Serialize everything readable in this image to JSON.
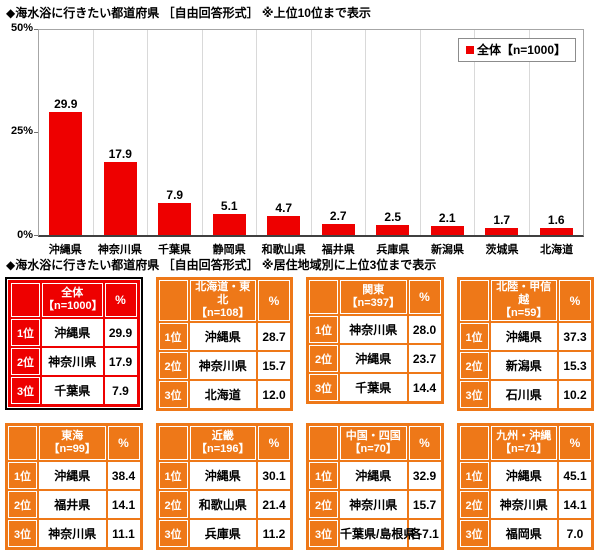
{
  "page": {
    "title1": "◆海水浴に行きたい都道府県 ［自由回答形式］ ※上位10位まで表示",
    "title2": "◆海水浴に行きたい都道府県 ［自由回答形式］ ※居住地域別に上位3位まで表示"
  },
  "chart_data": {
    "type": "bar",
    "title": "海水浴に行きたい都道府県（自由回答形式・上位10位）",
    "categories": [
      "沖縄県",
      "神奈川県",
      "千葉県",
      "静岡県",
      "和歌山県",
      "福井県",
      "兵庫県",
      "新潟県",
      "茨城県",
      "北海道"
    ],
    "values": [
      29.9,
      17.9,
      7.9,
      5.1,
      4.7,
      2.7,
      2.5,
      2.1,
      1.7,
      1.6
    ],
    "xlabel": "",
    "ylabel": "%",
    "ylim": [
      0,
      50
    ],
    "yticks": [
      "50%",
      "25%",
      "0%"
    ],
    "legend": "全体【n=1000】",
    "legend_position": "top-right",
    "grid": "vertical-category-lines",
    "bar_color": "#ee0000"
  },
  "tables": [
    {
      "theme": "red",
      "outlined": true,
      "region": "全体",
      "n": "【n=1000】",
      "pct_label": "%",
      "rows": [
        [
          "1位",
          "沖縄県",
          "29.9"
        ],
        [
          "2位",
          "神奈川県",
          "17.9"
        ],
        [
          "3位",
          "千葉県",
          "7.9"
        ]
      ]
    },
    {
      "theme": "orange",
      "outlined": false,
      "region": "北海道・東北",
      "n": "【n=108】",
      "pct_label": "%",
      "rows": [
        [
          "1位",
          "沖縄県",
          "28.7"
        ],
        [
          "2位",
          "神奈川県",
          "15.7"
        ],
        [
          "3位",
          "北海道",
          "12.0"
        ]
      ]
    },
    {
      "theme": "orange",
      "outlined": false,
      "region": "関東",
      "n": "【n=397】",
      "pct_label": "%",
      "rows": [
        [
          "1位",
          "神奈川県",
          "28.0"
        ],
        [
          "2位",
          "沖縄県",
          "23.7"
        ],
        [
          "3位",
          "千葉県",
          "14.4"
        ]
      ]
    },
    {
      "theme": "orange",
      "outlined": false,
      "region": "北陸・甲信越",
      "n": "【n=59】",
      "pct_label": "%",
      "rows": [
        [
          "1位",
          "沖縄県",
          "37.3"
        ],
        [
          "2位",
          "新潟県",
          "15.3"
        ],
        [
          "3位",
          "石川県",
          "10.2"
        ]
      ]
    },
    {
      "theme": "orange",
      "outlined": false,
      "region": "東海",
      "n": "【n=99】",
      "pct_label": "%",
      "rows": [
        [
          "1位",
          "沖縄県",
          "38.4"
        ],
        [
          "2位",
          "福井県",
          "14.1"
        ],
        [
          "3位",
          "神奈川県",
          "11.1"
        ]
      ]
    },
    {
      "theme": "orange",
      "outlined": false,
      "region": "近畿",
      "n": "【n=196】",
      "pct_label": "%",
      "rows": [
        [
          "1位",
          "沖縄県",
          "30.1"
        ],
        [
          "2位",
          "和歌山県",
          "21.4"
        ],
        [
          "3位",
          "兵庫県",
          "11.2"
        ]
      ]
    },
    {
      "theme": "orange",
      "outlined": false,
      "region": "中国・四国",
      "n": "【n=70】",
      "pct_label": "%",
      "rows": [
        [
          "1位",
          "沖縄県",
          "32.9"
        ],
        [
          "2位",
          "神奈川県",
          "15.7"
        ],
        [
          "3位",
          "千葉県/島根県",
          "各7.1"
        ]
      ]
    },
    {
      "theme": "orange",
      "outlined": false,
      "region": "九州・沖縄",
      "n": "【n=71】",
      "pct_label": "%",
      "rows": [
        [
          "1位",
          "沖縄県",
          "45.1"
        ],
        [
          "2位",
          "神奈川県",
          "14.1"
        ],
        [
          "3位",
          "福岡県",
          "7.0"
        ]
      ]
    }
  ],
  "colors": {
    "bar_red": "#ee0000",
    "table_red": "#ee0000",
    "table_orange": "#ee7818"
  }
}
